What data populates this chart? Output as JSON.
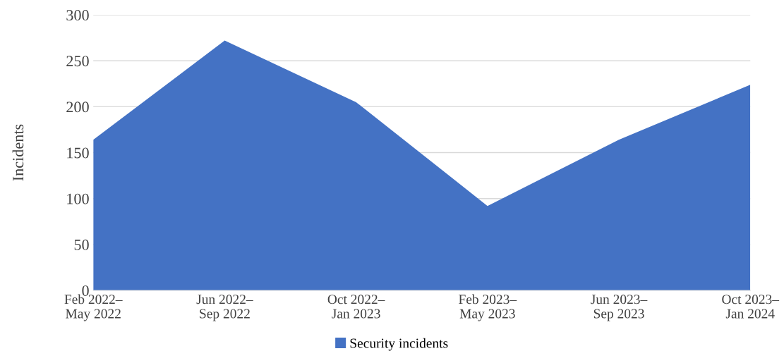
{
  "chart_data": {
    "type": "area",
    "ylabel": "Incidents",
    "categories": [
      "Feb 2022–\nMay 2022",
      "Jun 2022–\nSep 2022",
      "Oct 2022–\nJan 2023",
      "Feb 2023–\nMay 2023",
      "Jun 2023–\nSep 2023",
      "Oct 2023–\nJan 2024"
    ],
    "series": [
      {
        "name": "Security incidents",
        "color": "#4472c4",
        "values": [
          164,
          272,
          205,
          92,
          164,
          224
        ]
      }
    ],
    "ylim": [
      0,
      300
    ],
    "yticks": [
      0,
      50,
      100,
      150,
      200,
      250,
      300
    ],
    "grid": "y",
    "legend": "bottom"
  }
}
